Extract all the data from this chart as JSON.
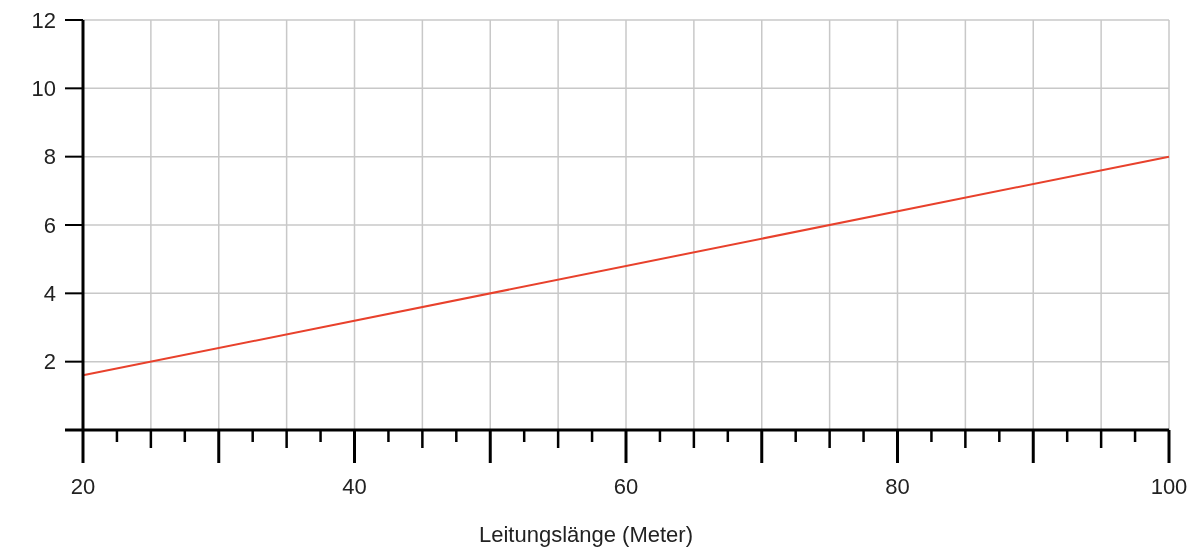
{
  "chart_data": {
    "type": "line",
    "xlabel": "Leitungslänge (Meter)",
    "x": [
      20,
      100
    ],
    "series": [
      {
        "color": "#e8412c",
        "values": [
          1.6,
          8
        ]
      }
    ],
    "xlim": [
      20,
      100
    ],
    "xticks": [
      20,
      {
        "value": 22.5,
        "label": null
      },
      {
        "value": 25,
        "label": null
      },
      {
        "value": 27.5,
        "label": null
      },
      {
        "value": 30,
        "label": null
      },
      {
        "value": 32.5,
        "label": null
      },
      {
        "value": 35,
        "label": null
      },
      {
        "value": 37.5,
        "label": null
      },
      40,
      {
        "value": 42.5,
        "label": null
      },
      {
        "value": 45,
        "label": null
      },
      {
        "value": 47.5,
        "label": null
      },
      {
        "value": 50,
        "label": null
      },
      {
        "value": 52.5,
        "label": null
      },
      {
        "value": 55,
        "label": null
      },
      {
        "value": 57.5,
        "label": null
      },
      60,
      {
        "value": 62.5,
        "label": null
      },
      {
        "value": 65,
        "label": null
      },
      {
        "value": 67.5,
        "label": null
      },
      {
        "value": 70,
        "label": null
      },
      {
        "value": 72.5,
        "label": null
      },
      {
        "value": 75,
        "label": null
      },
      {
        "value": 77.5,
        "label": null
      },
      80,
      {
        "value": 82.5,
        "label": null
      },
      {
        "value": 85,
        "label": null
      },
      {
        "value": 87.5,
        "label": null
      },
      {
        "value": 90,
        "label": null
      },
      {
        "value": 92.5,
        "label": null
      },
      {
        "value": 95,
        "label": null
      },
      {
        "value": 97.5,
        "label": null
      },
      100
    ],
    "ylim": [
      0,
      12
    ],
    "yticks": [
      {
        "value": 0,
        "label": null
      },
      2,
      4,
      6,
      8,
      10,
      12
    ],
    "grid": true,
    "marker": "none",
    "line_style": "solid"
  }
}
